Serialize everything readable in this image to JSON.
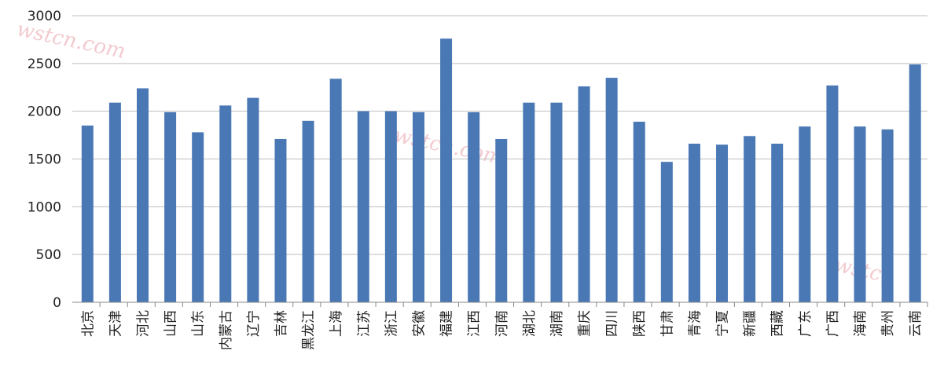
{
  "chart_data": {
    "type": "bar",
    "title": "",
    "xlabel": "",
    "ylabel": "",
    "ylim": [
      0,
      3000
    ],
    "yticks": [
      0,
      500,
      1000,
      1500,
      2000,
      2500,
      3000
    ],
    "grid": true,
    "bar_color": "#4a78b5",
    "grid_color": "#bdbdbd",
    "categories": [
      "北京",
      "天津",
      "河北",
      "山西",
      "山东",
      "内蒙古",
      "辽宁",
      "吉林",
      "黑龙江",
      "上海",
      "江苏",
      "浙江",
      "安徽",
      "福建",
      "江西",
      "河南",
      "湖北",
      "湖南",
      "重庆",
      "四川",
      "陕西",
      "甘肃",
      "青海",
      "宁夏",
      "新疆",
      "西藏",
      "广东",
      "广西",
      "海南",
      "贵州",
      "云南"
    ],
    "values": [
      1850,
      2090,
      2240,
      1990,
      1780,
      2060,
      2140,
      1710,
      1900,
      2340,
      2000,
      2000,
      1990,
      2760,
      1990,
      1710,
      2090,
      2090,
      2260,
      2350,
      1890,
      1470,
      1660,
      1650,
      1740,
      1660,
      1840,
      2270,
      1840,
      1810,
      2490
    ]
  }
}
